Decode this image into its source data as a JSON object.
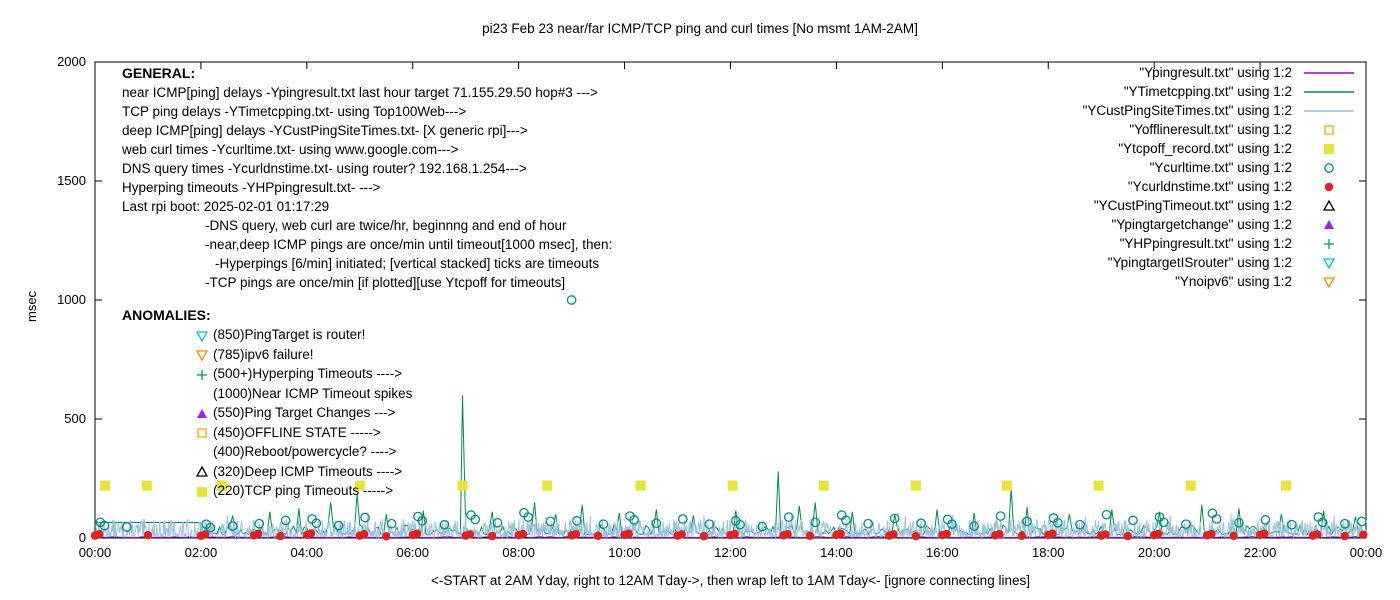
{
  "title": "pi23 Feb 23  near/far ICMP/TCP ping and curl times [No msmt 1AM-2AM]",
  "general": {
    "heading": "GENERAL:",
    "lines": [
      {
        "text": "near ICMP[ping] delays -Ypingresult.txt last hour target 71.155.29.50 hop#3 --->",
        "indent": 0
      },
      {
        "text": "TCP ping delays -YTimetcpping.txt- using Top100Web--->",
        "indent": 0
      },
      {
        "text": "deep ICMP[ping] delays -YCustPingSiteTimes.txt- [X generic rpi]--->",
        "indent": 0
      },
      {
        "text": "web curl times -Ycurltime.txt- using www.google.com--->",
        "indent": 0
      },
      {
        "text": "DNS query times -Ycurldnstime.txt- using router? 192.168.1.254--->",
        "indent": 0
      },
      {
        "text": "Hyperping timeouts -YHPpingresult.txt- --->",
        "indent": 0
      },
      {
        "text": "Last rpi boot: 2025-02-01 01:17:29",
        "indent": 0
      },
      {
        "text": "-DNS query, web curl are twice/hr, beginnng and end of hour",
        "indent": 1
      },
      {
        "text": "-near,deep ICMP pings are once/min until timeout[1000 msec], then:",
        "indent": 1
      },
      {
        "text": "-Hyperpings [6/min] initiated; [vertical stacked] ticks are timeouts",
        "indent": 2
      },
      {
        "text": "-TCP pings are once/min [if plotted][use Ytcpoff for timeouts]",
        "indent": 1
      }
    ]
  },
  "anomalies": {
    "heading": "ANOMALIES:",
    "items": [
      {
        "marker": "triangle-down-open",
        "color": "#00BFFF",
        "text": "(850)PingTarget is router!"
      },
      {
        "marker": "triangle-down-open",
        "color": "#FF8C00",
        "text": "(785)ipv6 failure!"
      },
      {
        "marker": "plus",
        "color": "#009E60",
        "text": "(500+)Hyperping Timeouts ---->"
      },
      {
        "marker": null,
        "color": null,
        "text": "(1000)Near ICMP Timeout spikes"
      },
      {
        "marker": "triangle-filled",
        "color": "#A020F0",
        "text": "(550)Ping Target Changes --->"
      },
      {
        "marker": "square-open",
        "color": "#FFA500",
        "text": "(450)OFFLINE STATE ----->"
      },
      {
        "marker": null,
        "color": null,
        "text": "(400)Reboot/powercycle? ---->"
      },
      {
        "marker": "triangle-open",
        "color": "#000000",
        "text": "(320)Deep ICMP Timeouts ---->"
      },
      {
        "marker": "square-filled",
        "color": "#E8E337",
        "text": "(220)TCP ping Timeouts ----->"
      }
    ]
  },
  "chart_data": {
    "type": "line",
    "title": "pi23 Feb 23  near/far ICMP/TCP ping and curl times [No msmt 1AM-2AM]",
    "xlabel": "<-START at 2AM Yday, right to 12AM Tday->, then wrap left to 1AM Tday<- [ignore connecting lines]",
    "ylabel": "msec",
    "xlim": [
      0,
      24
    ],
    "ylim": [
      0,
      2000
    ],
    "grid": false,
    "legend_position": "top-right",
    "xtick_values": [
      0,
      2,
      4,
      6,
      8,
      10,
      12,
      14,
      16,
      18,
      20,
      22,
      24
    ],
    "xtick_labels": [
      "00:00",
      "02:00",
      "04:00",
      "06:00",
      "08:00",
      "10:00",
      "12:00",
      "14:00",
      "16:00",
      "18:00",
      "20:00",
      "22:00",
      "00:00"
    ],
    "ytick_values": [
      0,
      500,
      1000,
      1500,
      2000
    ],
    "series": [
      {
        "name": "Ypingresult",
        "label": "\"Ypingresult.txt\" using 1:2",
        "style": "line",
        "color": "#9400D3",
        "noise": {
          "start": 0,
          "end": 24,
          "step": 0.1,
          "base": 2,
          "amp": 4,
          "seed": 5
        }
      },
      {
        "name": "YTimetcpping",
        "label": "\"YTimetcpping.txt\" using 1:2",
        "style": "line",
        "color": "#008C48",
        "prefix": [
          [
            0,
            65
          ],
          [
            1.99,
            65
          ]
        ],
        "noise": {
          "start": 2,
          "end": 24,
          "step": 0.05,
          "base": 15,
          "amp": 40,
          "seed": 9
        },
        "spikes": [
          [
            2.6,
            95
          ],
          [
            3.3,
            110
          ],
          [
            3.85,
            125
          ],
          [
            4.45,
            150
          ],
          [
            4.95,
            185
          ],
          [
            5.5,
            100
          ],
          [
            6.2,
            115
          ],
          [
            6.94,
            600
          ],
          [
            7.5,
            110
          ],
          [
            8.3,
            150
          ],
          [
            8.7,
            100
          ],
          [
            9.2,
            140
          ],
          [
            9.9,
            105
          ],
          [
            10.6,
            120
          ],
          [
            11.3,
            95
          ],
          [
            12.1,
            115
          ],
          [
            12.9,
            280
          ],
          [
            13.3,
            135
          ],
          [
            13.6,
            150
          ],
          [
            14.3,
            110
          ],
          [
            15.1,
            100
          ],
          [
            15.9,
            120
          ],
          [
            16.6,
            105
          ],
          [
            17.3,
            210
          ],
          [
            17.6,
            130
          ],
          [
            18.4,
            100
          ],
          [
            19.2,
            120
          ],
          [
            20.1,
            110
          ],
          [
            20.9,
            140
          ],
          [
            21.6,
            125
          ],
          [
            22.4,
            100
          ],
          [
            23.2,
            115
          ],
          [
            23.8,
            90
          ]
        ]
      },
      {
        "name": "YCustPingSiteTimes",
        "label": "\"YCustPingSiteTimes.txt\" using 1:2",
        "style": "line",
        "color": "#9CC3DE",
        "noise": {
          "start": 0,
          "end": 24,
          "step": 0.012,
          "base": 4,
          "amp": 75,
          "seed": 13
        },
        "spikes": [
          [
            2.5,
            95
          ],
          [
            5.15,
            105
          ],
          [
            7.0,
            98
          ],
          [
            9.35,
            92
          ],
          [
            11.5,
            96
          ],
          [
            13.15,
            104
          ],
          [
            15.3,
            94
          ],
          [
            16.2,
            98
          ],
          [
            18.7,
            92
          ],
          [
            20.3,
            96
          ],
          [
            21.45,
            100
          ],
          [
            23.4,
            94
          ]
        ]
      },
      {
        "name": "Yofflineresult",
        "label": "\"Yofflineresult.txt\" using 1:2",
        "style": "points",
        "marker": "square-open",
        "color": "#FFA500",
        "points": []
      },
      {
        "name": "Ytcpoff_record",
        "label": "\"Ytcpoff_record.txt\" using 1:2",
        "style": "points",
        "marker": "square-filled",
        "color": "#E8E337",
        "points": [
          [
            0.19,
            220
          ],
          [
            0.98,
            220
          ],
          [
            2.4,
            220
          ],
          [
            5.0,
            220
          ],
          [
            6.94,
            220
          ],
          [
            8.54,
            220
          ],
          [
            10.3,
            220
          ],
          [
            12.04,
            220
          ],
          [
            13.76,
            220
          ],
          [
            15.5,
            220
          ],
          [
            17.22,
            220
          ],
          [
            18.95,
            220
          ],
          [
            20.69,
            220
          ],
          [
            22.49,
            220
          ]
        ]
      },
      {
        "name": "Ycurltime",
        "label": "\"Ycurltime.txt\" using 1:2",
        "style": "points",
        "marker": "circle-open",
        "color": "#008B8B",
        "points": [
          [
            0.1,
            66
          ],
          [
            0.18,
            52
          ],
          [
            0.6,
            46
          ],
          [
            2.1,
            58
          ],
          [
            2.18,
            44
          ],
          [
            2.6,
            50
          ],
          [
            3.1,
            60
          ],
          [
            3.6,
            74
          ],
          [
            4.1,
            80
          ],
          [
            4.18,
            62
          ],
          [
            4.6,
            52
          ],
          [
            5.1,
            86
          ],
          [
            5.6,
            60
          ],
          [
            6.1,
            90
          ],
          [
            6.18,
            72
          ],
          [
            6.6,
            56
          ],
          [
            7.1,
            96
          ],
          [
            7.18,
            78
          ],
          [
            7.6,
            64
          ],
          [
            8.1,
            106
          ],
          [
            8.18,
            88
          ],
          [
            8.6,
            70
          ],
          [
            9.0,
            1000
          ],
          [
            9.1,
            72
          ],
          [
            9.6,
            58
          ],
          [
            10.1,
            92
          ],
          [
            10.18,
            76
          ],
          [
            10.6,
            62
          ],
          [
            11.1,
            80
          ],
          [
            11.6,
            58
          ],
          [
            12.1,
            72
          ],
          [
            12.18,
            56
          ],
          [
            12.6,
            48
          ],
          [
            13.1,
            88
          ],
          [
            13.6,
            66
          ],
          [
            14.1,
            96
          ],
          [
            14.18,
            74
          ],
          [
            14.6,
            60
          ],
          [
            15.1,
            82
          ],
          [
            15.6,
            62
          ],
          [
            16.1,
            78
          ],
          [
            16.18,
            58
          ],
          [
            16.6,
            50
          ],
          [
            17.1,
            92
          ],
          [
            17.6,
            70
          ],
          [
            18.1,
            84
          ],
          [
            18.18,
            64
          ],
          [
            18.6,
            56
          ],
          [
            19.1,
            98
          ],
          [
            19.6,
            74
          ],
          [
            20.1,
            88
          ],
          [
            20.18,
            66
          ],
          [
            20.6,
            58
          ],
          [
            21.1,
            104
          ],
          [
            21.18,
            80
          ],
          [
            21.6,
            64
          ],
          [
            22.1,
            76
          ],
          [
            22.6,
            56
          ],
          [
            23.1,
            88
          ],
          [
            23.18,
            66
          ],
          [
            23.6,
            60
          ],
          [
            23.92,
            70
          ]
        ]
      },
      {
        "name": "Ycurldnstime",
        "label": "\"Ycurldnstime.txt\" using 1:2",
        "style": "points",
        "marker": "circle-filled",
        "color": "#DD2222",
        "points": [
          [
            0,
            10
          ],
          [
            0.08,
            16
          ],
          [
            1,
            12
          ],
          [
            2,
            9
          ],
          [
            2.08,
            15
          ],
          [
            3,
            11
          ],
          [
            3.08,
            18
          ],
          [
            3.5,
            8
          ],
          [
            4,
            13
          ],
          [
            4.08,
            19
          ],
          [
            5,
            10
          ],
          [
            5.08,
            16
          ],
          [
            5.5,
            7
          ],
          [
            6,
            12
          ],
          [
            6.08,
            18
          ],
          [
            7,
            10
          ],
          [
            7.08,
            15
          ],
          [
            7.5,
            8
          ],
          [
            8,
            12
          ],
          [
            8.08,
            17
          ],
          [
            9,
            11
          ],
          [
            9.08,
            16
          ],
          [
            9.5,
            9
          ],
          [
            10,
            13
          ],
          [
            10.08,
            18
          ],
          [
            11,
            10
          ],
          [
            11.08,
            15
          ],
          [
            11.5,
            8
          ],
          [
            12,
            12
          ],
          [
            12.08,
            17
          ],
          [
            13,
            11
          ],
          [
            13.08,
            16
          ],
          [
            13.5,
            9
          ],
          [
            14,
            13
          ],
          [
            14.08,
            18
          ],
          [
            15,
            10
          ],
          [
            15.08,
            15
          ],
          [
            15.5,
            8
          ],
          [
            16,
            12
          ],
          [
            16.08,
            17
          ],
          [
            17,
            11
          ],
          [
            17.08,
            16
          ],
          [
            17.5,
            9
          ],
          [
            18,
            13
          ],
          [
            18.08,
            18
          ],
          [
            19,
            10
          ],
          [
            19.08,
            15
          ],
          [
            19.5,
            8
          ],
          [
            20,
            12
          ],
          [
            20.08,
            17
          ],
          [
            21,
            11
          ],
          [
            21.08,
            16
          ],
          [
            21.5,
            9
          ],
          [
            22,
            13
          ],
          [
            22.08,
            18
          ],
          [
            23,
            10
          ],
          [
            23.08,
            15
          ],
          [
            23.6,
            8
          ],
          [
            23.95,
            14
          ]
        ]
      },
      {
        "name": "YCustPingTimeout",
        "label": "\"YCustPingTimeout.txt\" using 1:2",
        "style": "points",
        "marker": "triangle-open",
        "color": "#000000",
        "points": []
      },
      {
        "name": "Ypingtargetchange",
        "label": "\"Ypingtargetchange\" using 1:2",
        "style": "points",
        "marker": "triangle-filled",
        "color": "#A020F0",
        "points": []
      },
      {
        "name": "YHPpingresult",
        "label": "\"YHPpingresult.txt\" using 1:2",
        "style": "points",
        "marker": "plus",
        "color": "#009E60",
        "points": []
      },
      {
        "name": "YpingtargetISrouter",
        "label": "\"YpingtargetISrouter\" using 1:2",
        "style": "points",
        "marker": "triangle-down-open",
        "color": "#00BFFF",
        "points": []
      },
      {
        "name": "Ynoipv6",
        "label": "\"Ynoipv6\" using 1:2",
        "style": "points",
        "marker": "triangle-down-open",
        "color": "#FF8C00",
        "points": []
      }
    ]
  }
}
